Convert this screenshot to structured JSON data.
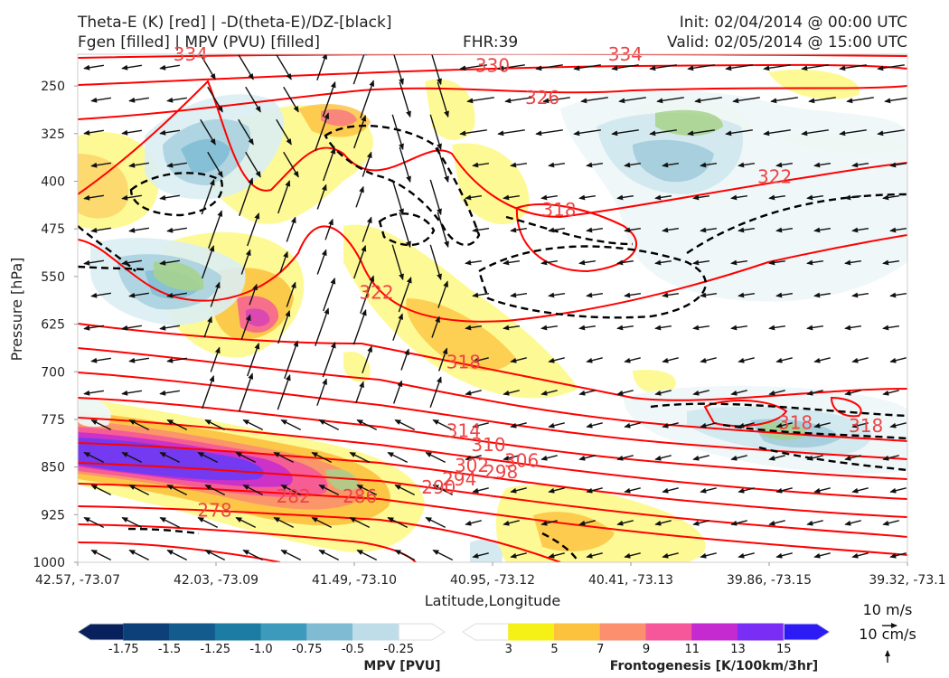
{
  "header": {
    "title_line1": "Theta-E (K) [red] | -D(theta-E)/DZ-[black]",
    "title_line2": "Fgen [filled] | MPV (PVU) [filled]",
    "fhr": "FHR:39",
    "init": "Init: 02/04/2014 @ 00:00 UTC",
    "valid": "Valid: 02/05/2014 @ 15:00 UTC"
  },
  "chart_data": {
    "type": "cross-section",
    "xlabel": "Latitude,Longitude",
    "ylabel": "Pressure [hPa]",
    "x_ticks": [
      "42.57, -73.07",
      "42.03, -73.09",
      "41.49, -73.10",
      "40.95, -73.12",
      "40.41, -73.13",
      "39.86, -73.15",
      "39.32, -73.1"
    ],
    "y_ticks": [
      250,
      325,
      400,
      475,
      550,
      625,
      700,
      775,
      850,
      925,
      1000
    ],
    "ylim": [
      1000,
      200
    ],
    "theta_e_labels": [
      {
        "value": "334",
        "x_frac": 0.136,
        "p": 200
      },
      {
        "value": "330",
        "x_frac": 0.5,
        "p": 218
      },
      {
        "value": "334",
        "x_frac": 0.66,
        "p": 200
      },
      {
        "value": "326",
        "x_frac": 0.56,
        "p": 268
      },
      {
        "value": "322",
        "x_frac": 0.84,
        "p": 393
      },
      {
        "value": "318",
        "x_frac": 0.58,
        "p": 445
      },
      {
        "value": "322",
        "x_frac": 0.36,
        "p": 575
      },
      {
        "value": "318",
        "x_frac": 0.465,
        "p": 685
      },
      {
        "value": "314",
        "x_frac": 0.465,
        "p": 793
      },
      {
        "value": "310",
        "x_frac": 0.495,
        "p": 815
      },
      {
        "value": "306",
        "x_frac": 0.535,
        "p": 840
      },
      {
        "value": "302",
        "x_frac": 0.475,
        "p": 848
      },
      {
        "value": "298",
        "x_frac": 0.51,
        "p": 858
      },
      {
        "value": "294",
        "x_frac": 0.46,
        "p": 869
      },
      {
        "value": "290",
        "x_frac": 0.435,
        "p": 882
      },
      {
        "value": "286",
        "x_frac": 0.34,
        "p": 896
      },
      {
        "value": "282",
        "x_frac": 0.26,
        "p": 896
      },
      {
        "value": "278",
        "x_frac": 0.165,
        "p": 918
      },
      {
        "value": "318",
        "x_frac": 0.865,
        "p": 780
      },
      {
        "value": "318",
        "x_frac": 0.95,
        "p": 785
      }
    ],
    "mpv_colorbar": {
      "title": "MPV [PVU]",
      "levels": [
        "-1.75",
        "-1.5",
        "-1.25",
        "-1.0",
        "-0.75",
        "-0.5",
        "-0.25"
      ],
      "colors": [
        "#08215c",
        "#0d3f78",
        "#135b8c",
        "#1c7ca3",
        "#3c9bbd",
        "#7fbcd3",
        "#bfdde8",
        "#ffffff"
      ]
    },
    "fgen_colorbar": {
      "title": "Frontogenesis [K/100km/3hr]",
      "levels": [
        "3",
        "5",
        "7",
        "9",
        "11",
        "13",
        "15"
      ],
      "colors": [
        "#ffffff",
        "#f5f016",
        "#fcc13d",
        "#fb8f6e",
        "#f5579a",
        "#c42ad0",
        "#7a2df5",
        "#2c1bf5"
      ]
    },
    "wind_key": {
      "label1": "10 m/s",
      "label2": "10 cm/s"
    }
  }
}
